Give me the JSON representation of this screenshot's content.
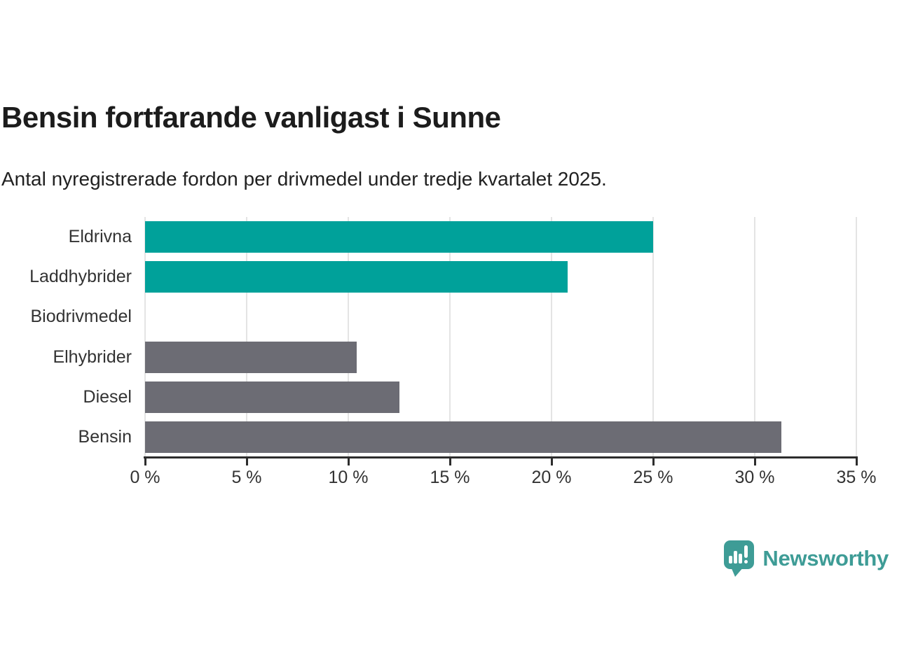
{
  "title": "Bensin fortfarande vanligast i Sunne",
  "subtitle": "Antal nyregistrerade fordon per drivmedel under tredje kvartalet 2025.",
  "chart_data": {
    "type": "bar",
    "orientation": "horizontal",
    "title": "Bensin fortfarande vanligast i Sunne",
    "subtitle": "Antal nyregistrerade fordon per drivmedel under tredje kvartalet 2025.",
    "categories": [
      "Eldrivna",
      "Laddhybrider",
      "Biodrivmedel",
      "Elhybrider",
      "Diesel",
      "Bensin"
    ],
    "values": [
      25.0,
      20.8,
      0,
      10.4,
      12.5,
      31.3
    ],
    "unit": "%",
    "xlim": [
      0,
      35
    ],
    "x_ticks": [
      0,
      5,
      10,
      15,
      20,
      25,
      30,
      35
    ],
    "x_tick_labels": [
      "0 %",
      "5 %",
      "10 %",
      "15 %",
      "20 %",
      "25 %",
      "30 %",
      "35 %"
    ],
    "grid": true,
    "legend": false,
    "bar_colors": [
      "#00a19a",
      "#00a19a",
      "#6c6c74",
      "#6c6c74",
      "#6c6c74",
      "#6c6c74"
    ]
  },
  "colors": {
    "highlight_teal": "#00a19a",
    "neutral_gray": "#6c6c74",
    "gridline": "#e4e4e4",
    "axis": "#2d2d2d",
    "title_text": "#1c1c1c",
    "label_text": "#333333",
    "logo_teal": "#3e9c96"
  },
  "branding": {
    "logo_text": "Newsworthy",
    "logo_icon": "speech-bubble-bar-chart-exclamation"
  }
}
